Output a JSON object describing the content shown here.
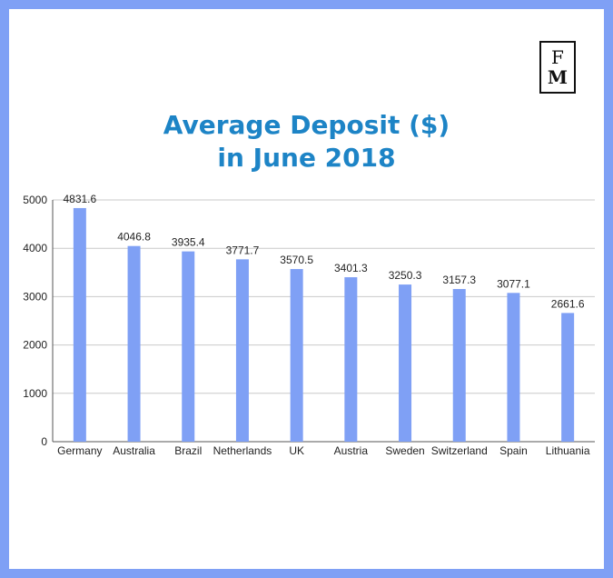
{
  "logo": {
    "line1": "F",
    "line2": "M"
  },
  "chart_data": {
    "type": "bar",
    "title_line1": "Average Deposit ($)",
    "title_line2": "in June 2018",
    "categories": [
      "Germany",
      "Australia",
      "Brazil",
      "Netherlands",
      "UK",
      "Austria",
      "Sweden",
      "Switzerland",
      "Spain",
      "Lithuania"
    ],
    "values": [
      4831.6,
      4046.8,
      3935.4,
      3771.7,
      3570.5,
      3401.3,
      3250.3,
      3157.3,
      3077.1,
      2661.6
    ],
    "value_labels": [
      "4831.6",
      "4046.8",
      "3935.4",
      "3771.7",
      "3570.5",
      "3401.3",
      "3250.3",
      "3157.3",
      "3077.1",
      "2661.6"
    ],
    "yticks": [
      0,
      1000,
      2000,
      3000,
      4000,
      5000
    ],
    "ylim": [
      0,
      5000
    ],
    "grid": true,
    "bar_color": "#7fa0f5"
  }
}
